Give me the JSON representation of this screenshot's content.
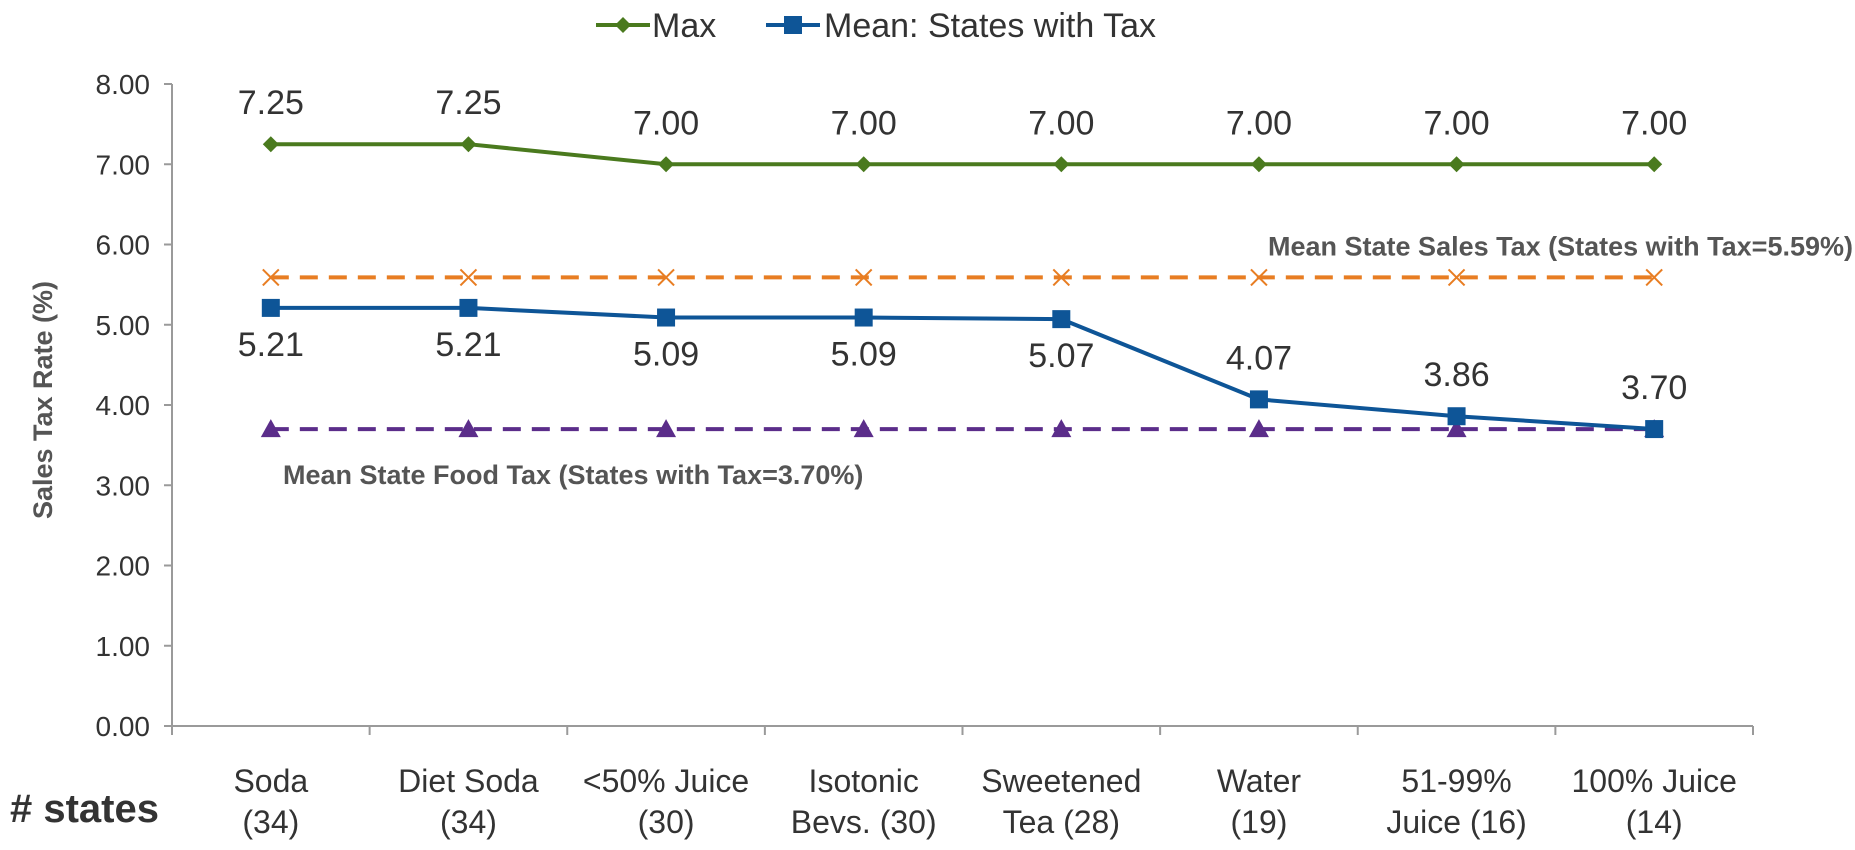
{
  "chart_data": {
    "type": "line",
    "ylabel": "Sales Tax Rate (%)",
    "xlabel": "# states",
    "ylim": [
      0,
      8
    ],
    "yticks": [
      "0.00",
      "1.00",
      "2.00",
      "3.00",
      "4.00",
      "5.00",
      "6.00",
      "7.00",
      "8.00"
    ],
    "grid": false,
    "legend_position": "top",
    "categories": [
      [
        "Soda",
        "(34)"
      ],
      [
        "Diet Soda",
        "(34)"
      ],
      [
        "<50% Juice",
        "(30)"
      ],
      [
        "Isotonic",
        "Bevs. (30)"
      ],
      [
        "Sweetened",
        "Tea (28)"
      ],
      [
        "Water",
        "(19)"
      ],
      [
        "51-99%",
        "Juice (16)"
      ],
      [
        "100% Juice",
        "(14)"
      ]
    ],
    "series": [
      {
        "name": "Max",
        "color": "#4a7a1e",
        "marker": "diamond",
        "values": [
          7.25,
          7.25,
          7.0,
          7.0,
          7.0,
          7.0,
          7.0,
          7.0
        ],
        "labels": [
          "7.25",
          "7.25",
          "7.00",
          "7.00",
          "7.00",
          "7.00",
          "7.00",
          "7.00"
        ]
      },
      {
        "name": "Mean: States with Tax",
        "color": "#0e5597",
        "marker": "square",
        "values": [
          5.21,
          5.21,
          5.09,
          5.09,
          5.07,
          4.07,
          3.86,
          3.7
        ],
        "labels": [
          "5.21",
          "5.21",
          "5.09",
          "5.09",
          "5.07",
          "4.07",
          "3.86",
          "3.70"
        ]
      }
    ],
    "reference_lines": [
      {
        "label": "Mean State Sales Tax (States with Tax=5.59%)",
        "value": 5.59,
        "color": "#e87d22",
        "marker": "x",
        "style": "dashed"
      },
      {
        "label": "Mean State Food Tax (States with Tax=3.70%)",
        "value": 3.7,
        "color": "#5b2d8a",
        "marker": "triangle",
        "style": "dashed"
      }
    ]
  }
}
